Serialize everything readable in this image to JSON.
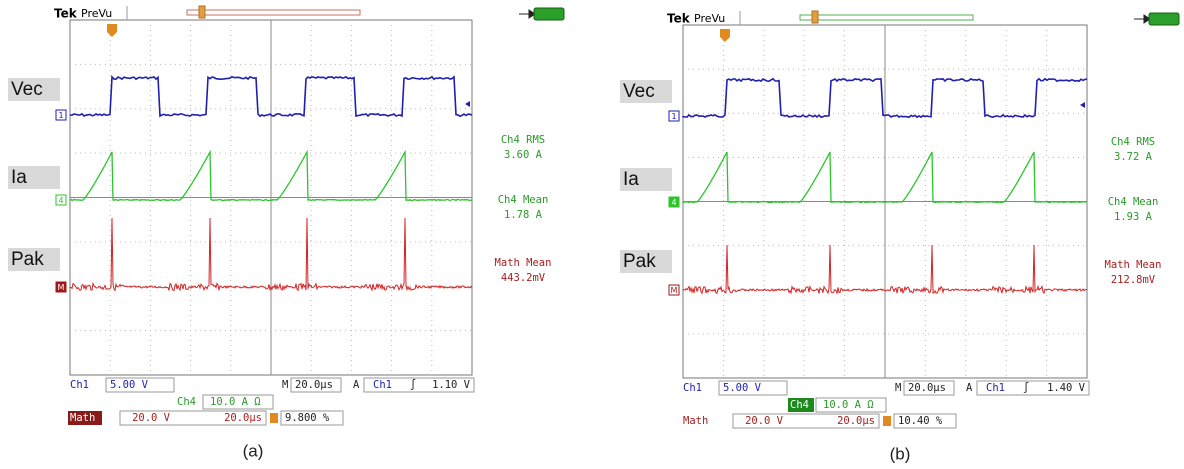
{
  "panels": [
    {
      "brand": "Tek",
      "mode": "PreVu",
      "traces": [
        {
          "label": "Vec",
          "marker": "1"
        },
        {
          "label": "Ia",
          "marker": "4"
        },
        {
          "label": "Pak",
          "marker": "M"
        }
      ],
      "measurements": [
        {
          "name": "Ch4 RMS",
          "value": "3.60 A"
        },
        {
          "name": "Ch4 Mean",
          "value": "1.78 A"
        },
        {
          "name": "Math Mean",
          "value": "443.2mV"
        }
      ],
      "settings": {
        "ch1": "Ch1",
        "ch1_scale": "5.00 V",
        "horizontal": "M",
        "timebase": "20.0µs",
        "acquire": "A",
        "trigger_channel": "Ch1",
        "trigger_slope": "∫",
        "trigger_level": "1.10 V",
        "ch4": "Ch4",
        "ch4_scale": "10.0 A Ω",
        "math": "Math",
        "math_scale": "20.0 V",
        "math_timebase": "20.0µs",
        "trigger_position": "9.800 %"
      },
      "caption": "(a)"
    },
    {
      "brand": "Tek",
      "mode": "PreVu",
      "traces": [
        {
          "label": "Vec",
          "marker": "1"
        },
        {
          "label": "Ia",
          "marker": "4"
        },
        {
          "label": "Pak",
          "marker": "M"
        }
      ],
      "measurements": [
        {
          "name": "Ch4 RMS",
          "value": "3.72 A"
        },
        {
          "name": "Ch4 Mean",
          "value": "1.93 A"
        },
        {
          "name": "Math Mean",
          "value": "212.8mV"
        }
      ],
      "settings": {
        "ch1": "Ch1",
        "ch1_scale": "5.00 V",
        "horizontal": "M",
        "timebase": "20.0µs",
        "acquire": "A",
        "trigger_channel": "Ch1",
        "trigger_slope": "∫",
        "trigger_level": "1.40 V",
        "ch4": "Ch4",
        "ch4_scale": "10.0 A Ω",
        "math": "Math",
        "math_scale": "20.0 V",
        "math_timebase": "20.0µs",
        "trigger_position": "10.40 %"
      },
      "caption": "(b)"
    }
  ]
}
